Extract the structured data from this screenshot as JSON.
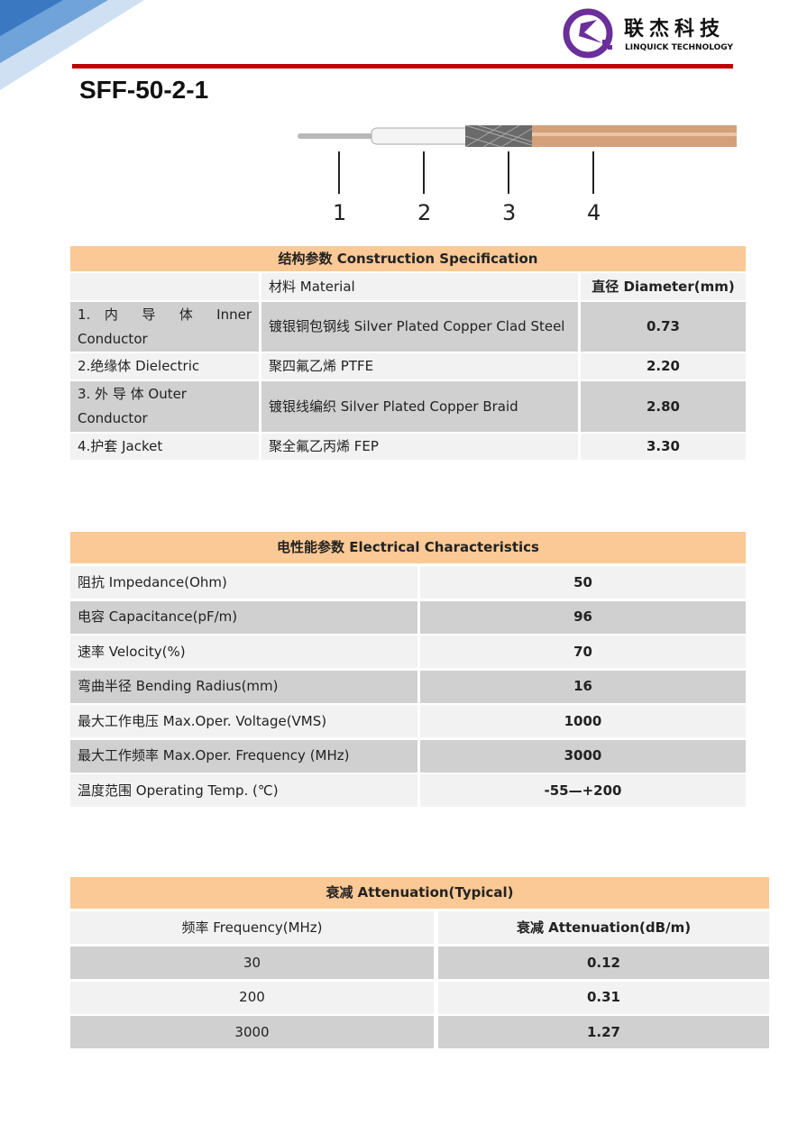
{
  "brand": {
    "name_cn": "联杰科技",
    "name_en": "LINQUICK TECHNOLOGY",
    "accent": "#c00000",
    "logo_color": "#6a2f9a"
  },
  "title": "SFF-50-2-1",
  "diagram": {
    "labels": [
      "1",
      "2",
      "3",
      "4"
    ]
  },
  "construction": {
    "title": "结构参数 Construction Specification",
    "headers": [
      "",
      "材料 Material",
      "直径 Diameter(mm)"
    ],
    "rows": [
      {
        "part": "1. 内 导 体 Inner Conductor",
        "material": "镀银铜包钢线 Silver Plated Copper Clad Steel",
        "diameter": "0.73"
      },
      {
        "part": "2.绝缘体 Dielectric",
        "material": "聚四氟乙烯 PTFE",
        "diameter": "2.20"
      },
      {
        "part": "3. 外 导 体 Outer Conductor",
        "material": "镀银线编织 Silver Plated Copper Braid",
        "diameter": "2.80"
      },
      {
        "part": "4.护套 Jacket",
        "material": "聚全氟乙丙烯 FEP",
        "diameter": "3.30"
      }
    ]
  },
  "electrical": {
    "title": "电性能参数 Electrical Characteristics",
    "rows": [
      {
        "label": "阻抗 Impedance(Ohm)",
        "value": "50"
      },
      {
        "label": "电容 Capacitance(pF/m)",
        "value": "96"
      },
      {
        "label": "速率 Velocity(%)",
        "value": "70"
      },
      {
        "label": "弯曲半径 Bending Radius(mm)",
        "value": "16"
      },
      {
        "label": "最大工作电压 Max.Oper. Voltage(VMS)",
        "value": "1000"
      },
      {
        "label": "最大工作频率 Max.Oper. Frequency (MHz)",
        "value": "3000"
      },
      {
        "label": "温度范围 Operating Temp. (℃)",
        "value": "-55—+200"
      }
    ]
  },
  "attenuation": {
    "title": "衰减 Attenuation(Typical)",
    "headers": [
      "频率 Frequency(MHz)",
      "衰减 Attenuation(dB/m)"
    ],
    "rows": [
      {
        "freq": "30",
        "att": "0.12"
      },
      {
        "freq": "200",
        "att": "0.31"
      },
      {
        "freq": "3000",
        "att": "1.27"
      }
    ]
  }
}
